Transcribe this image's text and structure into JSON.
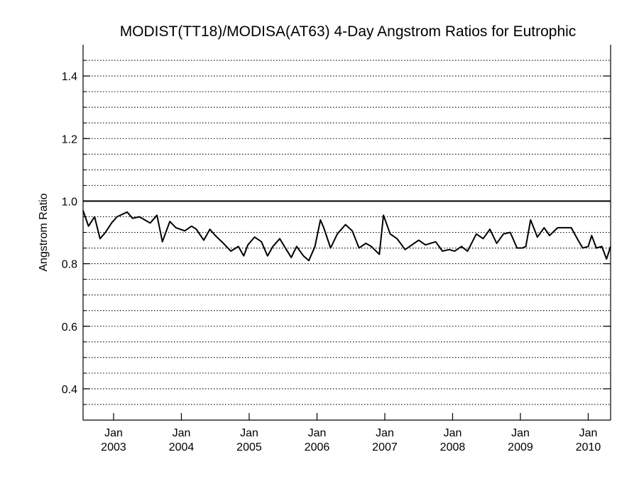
{
  "chart_data": {
    "type": "line",
    "title": "MODIST(TT18)/MODISA(AT63) 4-Day Angstrom Ratios for Eutrophic",
    "ylabel": "Angstrom Ratio",
    "xlabel": "",
    "ylim": [
      0.3,
      1.5
    ],
    "xlim": [
      2002.55,
      2010.33
    ],
    "yticks": [
      0.4,
      0.6,
      0.8,
      1.0,
      1.2,
      1.4
    ],
    "ytick_labels": [
      "0.4",
      "0.6",
      "0.8",
      "1.0",
      "1.2",
      "1.4"
    ],
    "yminor_step": 0.05,
    "xticks": [
      {
        "x": 2003.0,
        "month": "Jan",
        "year": "2003"
      },
      {
        "x": 2004.0,
        "month": "Jan",
        "year": "2004"
      },
      {
        "x": 2005.0,
        "month": "Jan",
        "year": "2005"
      },
      {
        "x": 2006.0,
        "month": "Jan",
        "year": "2006"
      },
      {
        "x": 2007.0,
        "month": "Jan",
        "year": "2007"
      },
      {
        "x": 2008.0,
        "month": "Jan",
        "year": "2008"
      },
      {
        "x": 2009.0,
        "month": "Jan",
        "year": "2009"
      },
      {
        "x": 2010.0,
        "month": "Jan",
        "year": "2010"
      }
    ],
    "reference_line": 1.0,
    "grid": "horizontal dotted",
    "series": [
      {
        "x": [
          2002.55,
          2002.63,
          2002.72,
          2002.8,
          2002.88,
          2002.97,
          2003.05,
          2003.2,
          2003.28,
          2003.38,
          2003.54,
          2003.64,
          2003.72,
          2003.83,
          2003.92,
          2004.05,
          2004.15,
          2004.22,
          2004.33,
          2004.42,
          2004.5,
          2004.62,
          2004.73,
          2004.84,
          2004.92,
          2004.98,
          2005.08,
          2005.18,
          2005.27,
          2005.35,
          2005.45,
          2005.52,
          2005.62,
          2005.7,
          2005.8,
          2005.88,
          2005.97,
          2006.05,
          2006.1,
          2006.2,
          2006.3,
          2006.42,
          2006.52,
          2006.62,
          2006.72,
          2006.8,
          2006.92,
          2006.98,
          2007.08,
          2007.18,
          2007.3,
          2007.4,
          2007.5,
          2007.6,
          2007.75,
          2007.85,
          2007.95,
          2008.03,
          2008.13,
          2008.22,
          2008.35,
          2008.45,
          2008.55,
          2008.65,
          2008.75,
          2008.85,
          2008.95,
          2009.03,
          2009.08,
          2009.15,
          2009.25,
          2009.35,
          2009.43,
          2009.55,
          2009.65,
          2009.75,
          2009.85,
          2009.92,
          2010.0,
          2010.05,
          2010.12,
          2010.2,
          2010.27,
          2010.33
        ],
        "y": [
          0.97,
          0.92,
          0.95,
          0.88,
          0.9,
          0.93,
          0.95,
          0.965,
          0.945,
          0.95,
          0.93,
          0.955,
          0.87,
          0.935,
          0.915,
          0.905,
          0.92,
          0.91,
          0.875,
          0.91,
          0.89,
          0.865,
          0.84,
          0.855,
          0.825,
          0.86,
          0.885,
          0.87,
          0.825,
          0.855,
          0.88,
          0.855,
          0.82,
          0.855,
          0.825,
          0.81,
          0.855,
          0.94,
          0.915,
          0.85,
          0.895,
          0.925,
          0.905,
          0.85,
          0.865,
          0.855,
          0.83,
          0.955,
          0.895,
          0.88,
          0.845,
          0.86,
          0.875,
          0.86,
          0.87,
          0.84,
          0.845,
          0.84,
          0.855,
          0.84,
          0.895,
          0.88,
          0.91,
          0.865,
          0.895,
          0.9,
          0.85,
          0.85,
          0.855,
          0.94,
          0.885,
          0.915,
          0.89,
          0.915,
          0.915,
          0.915,
          0.875,
          0.85,
          0.855,
          0.89,
          0.85,
          0.855,
          0.815,
          0.855
        ]
      }
    ]
  }
}
